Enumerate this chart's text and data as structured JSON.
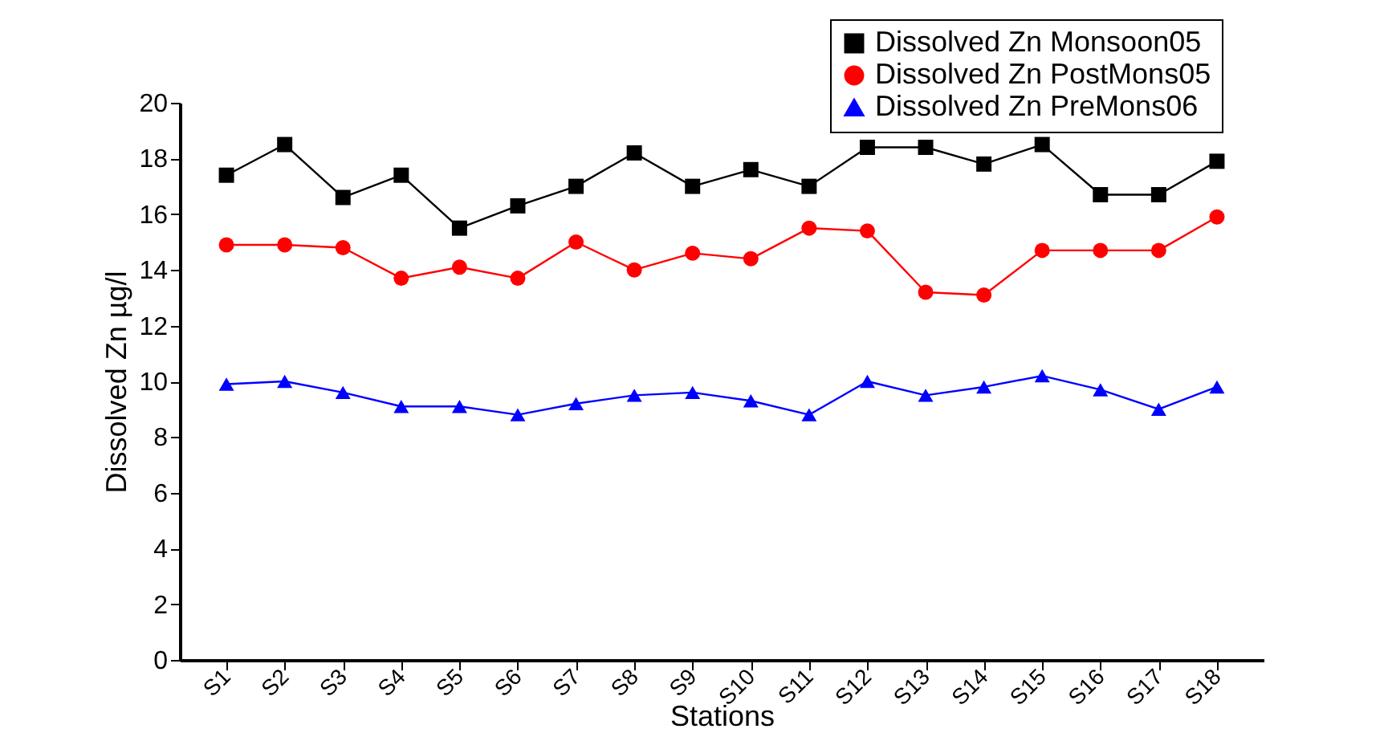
{
  "chart_data": {
    "type": "line",
    "xlabel": "Stations",
    "ylabel": "Dissolved Zn µg/l",
    "categories": [
      "S1",
      "S2",
      "S3",
      "S4",
      "S5",
      "S6",
      "S7",
      "S8",
      "S9",
      "S10",
      "S11",
      "S12",
      "S13",
      "S14",
      "S15",
      "S16",
      "S17",
      "S18"
    ],
    "series": [
      {
        "name": "Dissolved Zn Monsoon05",
        "color": "#000000",
        "marker": "square",
        "values": [
          17.4,
          18.5,
          16.6,
          17.4,
          15.5,
          16.3,
          17.0,
          18.2,
          17.0,
          17.6,
          17.0,
          18.4,
          18.4,
          17.8,
          18.5,
          16.7,
          16.7,
          17.9
        ]
      },
      {
        "name": "Dissolved Zn PostMons05",
        "color": "#ff0000",
        "marker": "circle",
        "values": [
          14.9,
          14.9,
          14.8,
          13.7,
          14.1,
          13.7,
          15.0,
          14.0,
          14.6,
          14.4,
          15.5,
          15.4,
          13.2,
          13.1,
          14.7,
          14.7,
          14.7,
          15.9
        ]
      },
      {
        "name": "Dissolved Zn PreMons06",
        "color": "#0000ff",
        "marker": "triangle",
        "values": [
          9.9,
          10.0,
          9.6,
          9.1,
          9.1,
          8.8,
          9.2,
          9.5,
          9.6,
          9.3,
          8.8,
          10.0,
          9.5,
          9.8,
          10.2,
          9.7,
          9.0,
          9.8
        ]
      }
    ],
    "ylim": [
      0,
      20
    ],
    "yticks": [
      0,
      2,
      4,
      6,
      8,
      10,
      12,
      14,
      16,
      18,
      20
    ],
    "grid": false,
    "legend": "top right",
    "line_style": "solid"
  }
}
